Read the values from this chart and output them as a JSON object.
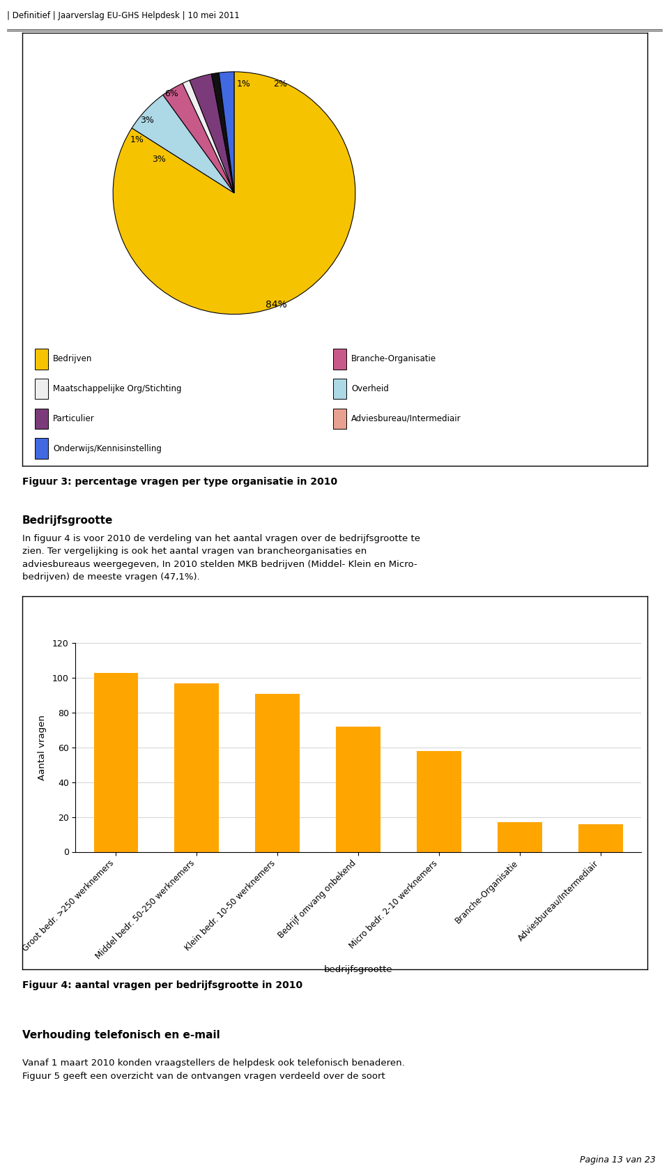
{
  "header": "| Definitief | Jaarverslag EU-GHS Helpdesk | 10 mei 2011",
  "pie_values": [
    84,
    6,
    3,
    1,
    3,
    1,
    2
  ],
  "pie_pct_labels": [
    "84%",
    "6%",
    "3%",
    "1%",
    "3%",
    "1%",
    "2%"
  ],
  "pie_colors": [
    "#F5C300",
    "#ADD8E6",
    "#C85A8A",
    "#F0EEF0",
    "#7B3B7A",
    "#111111",
    "#4169E1"
  ],
  "pie_legend": [
    {
      "label": "Bedrijven",
      "color": "#F5C300"
    },
    {
      "label": "Maatschappelijke Org/Stichting",
      "color": "#EEEEEE"
    },
    {
      "label": "Particulier",
      "color": "#7B3B7A"
    },
    {
      "label": "Onderwijs/Kennisinstelling",
      "color": "#4169E1"
    },
    {
      "label": "Branche-Organisatie",
      "color": "#C85A8A"
    },
    {
      "label": "Overheid",
      "color": "#ADD8E6"
    },
    {
      "label": "Adviesbureau/Intermediair",
      "color": "#E8A090"
    }
  ],
  "pie_fig_title": "Figuur 3: percentage vragen per type organisatie in 2010",
  "bar_categories": [
    "Groot bedr. >250 werknemers",
    "Middel bedr. 50-250 werknemers",
    "Klein bedr. 10-50 werknemers",
    "Bedrijf omvang onbekend",
    "Micro bedr. 2-10 werknemers",
    "Branche-Organisatie",
    "Adviesbureau/Intermediair"
  ],
  "bar_values": [
    103,
    97,
    91,
    72,
    58,
    17,
    16
  ],
  "bar_color": "#FFA500",
  "bar_xlabel": "bedrijfsgrootte",
  "bar_ylabel": "Aantal vragen",
  "bar_ylim": [
    0,
    120
  ],
  "bar_yticks": [
    0,
    20,
    40,
    60,
    80,
    100,
    120
  ],
  "bar_fig_title": "Figuur 4: aantal vragen per bedrijfsgrootte in 2010",
  "section1_title": "Bedrijfsgrootte",
  "section1_line1": "In figuur 4 is voor 2010 de verdeling van het aantal vragen over de bedrijfsgrootte te",
  "section1_line2": "zien. Ter vergelijking is ook het aantal vragen van brancheorganisaties en",
  "section1_line3": "adviesbureaus weergegeven, In 2010 stelden MKB bedrijven (Middel- Klein en Micro-",
  "section1_line4": "bedrijven) de meeste vragen (47,1%).",
  "section2_title": "Verhouding telefonisch en e-mail",
  "section2_line1": "Vanaf 1 maart 2010 konden vraagstellers de helpdesk ook telefonisch benaderen.",
  "section2_line2": "Figuur 5 geeft een overzicht van de ontvangen vragen verdeeld over de soort",
  "footer": "Pagina 13 van 23",
  "bg": "#FFFFFF"
}
